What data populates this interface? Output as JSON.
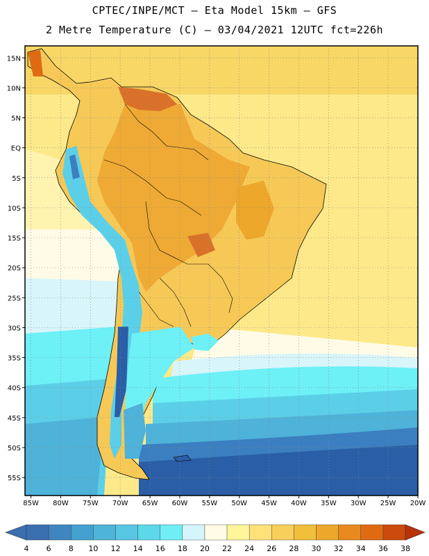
{
  "title": {
    "line1": "CPTEC/INPE/MCT –  Eta Model 15km – GFS",
    "line2": "2 Metre Temperature (C) – 03/04/2021 12UTC fct=226h"
  },
  "map_axes": {
    "lon_labels": [
      "85W",
      "80W",
      "75W",
      "70W",
      "65W",
      "60W",
      "55W",
      "50W",
      "45W",
      "40W",
      "35W",
      "30W",
      "25W",
      "20W"
    ],
    "lat_labels": [
      "15N",
      "10N",
      "5N",
      "EQ",
      "5S",
      "10S",
      "15S",
      "20S",
      "25S",
      "30S",
      "35S",
      "40S",
      "45S",
      "50S",
      "55S"
    ],
    "lon_range": [
      -86,
      -20
    ],
    "lat_range": [
      17,
      -58
    ],
    "grid": "dotted"
  },
  "colorbar": {
    "labels": [
      "4",
      "6",
      "8",
      "10",
      "12",
      "14",
      "16",
      "18",
      "20",
      "22",
      "24",
      "26",
      "28",
      "30",
      "32",
      "34",
      "36",
      "38"
    ],
    "colors": [
      "#3a6fb0",
      "#3f86c0",
      "#44a0cf",
      "#4eb4d9",
      "#57c6e3",
      "#5cd8ea",
      "#6feef5",
      "#d4f6fb",
      "#fffbe6",
      "#fff59a",
      "#fde27a",
      "#f7cf5a",
      "#f0bf3c",
      "#eda72a",
      "#e88a1e",
      "#df6a12",
      "#cc4a0c",
      "#b8330a"
    ]
  },
  "map_colors": {
    "ocean_cold_deep": "#2a5ea6",
    "ocean_cold": "#3b7fc0",
    "ocean_cool": "#4fb2d8",
    "ocean_cyan": "#5ccfe8",
    "ocean_bright": "#6df0f6",
    "ocean_pale": "#d8f5fa",
    "ocean_warm": "#fff3b0",
    "ocean_warmer": "#fde98a",
    "land_hot": "#eeaa34",
    "land_warm": "#f6c957",
    "land_veryhot": "#d9712a"
  }
}
